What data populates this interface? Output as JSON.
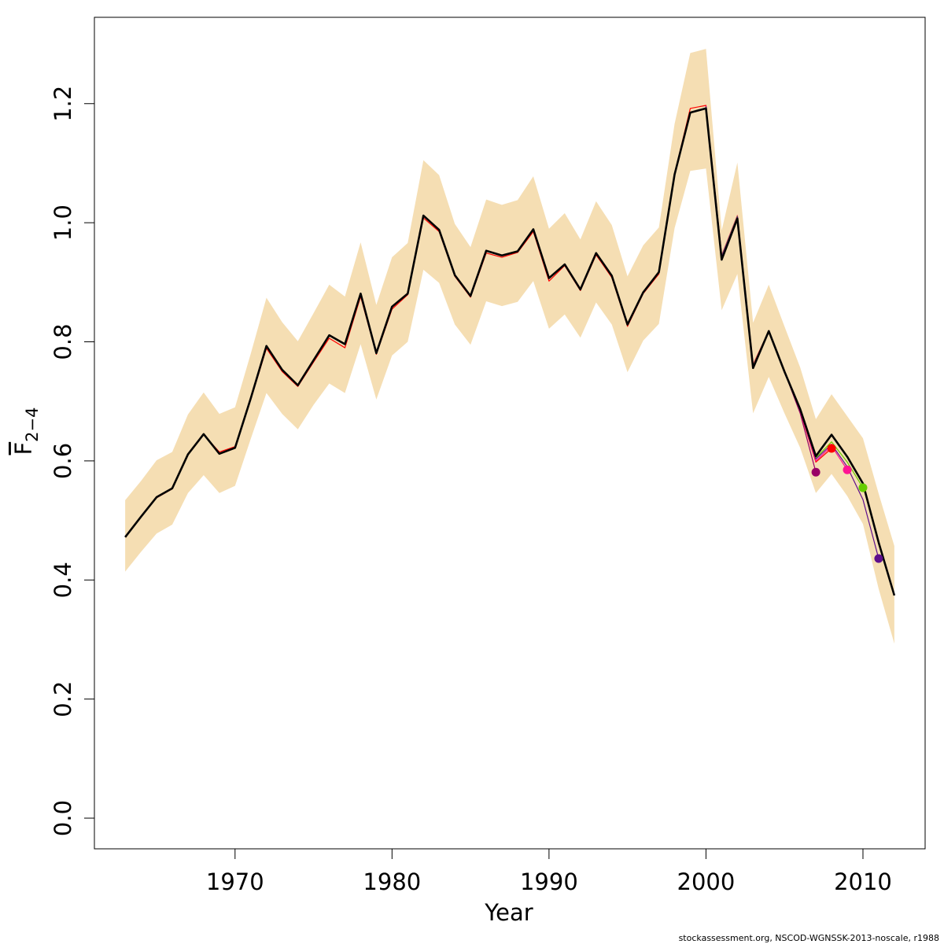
{
  "chart_data": {
    "type": "line",
    "xlabel": "Year",
    "ylabel": {
      "main": "F",
      "sub": "2−4"
    },
    "footnote": "stockassessment.org, NSCOD-WGNSSK-2013-noscale, r1988",
    "x": [
      1963,
      1964,
      1965,
      1966,
      1967,
      1968,
      1969,
      1970,
      1971,
      1972,
      1973,
      1974,
      1975,
      1976,
      1977,
      1978,
      1979,
      1980,
      1981,
      1982,
      1983,
      1984,
      1985,
      1986,
      1987,
      1988,
      1989,
      1990,
      1991,
      1992,
      1993,
      1994,
      1995,
      1996,
      1997,
      1998,
      1999,
      2000,
      2001,
      2002,
      2003,
      2004,
      2005,
      2006,
      2007,
      2008,
      2009,
      2010,
      2011,
      2012
    ],
    "band": {
      "color": "#F5DEB3",
      "upper": [
        0.534,
        0.566,
        0.601,
        0.615,
        0.678,
        0.715,
        0.679,
        0.69,
        0.78,
        0.874,
        0.833,
        0.801,
        0.848,
        0.896,
        0.876,
        0.967,
        0.862,
        0.942,
        0.966,
        1.105,
        1.08,
        0.998,
        0.959,
        1.039,
        1.03,
        1.038,
        1.078,
        0.99,
        1.016,
        0.972,
        1.036,
        0.996,
        0.91,
        0.962,
        0.992,
        1.166,
        1.285,
        1.292,
        0.987,
        1.101,
        0.832,
        0.896,
        0.826,
        0.757,
        0.67,
        0.712,
        0.675,
        0.638,
        0.545,
        0.457
      ],
      "lower": [
        0.414,
        0.447,
        0.478,
        0.493,
        0.546,
        0.576,
        0.546,
        0.558,
        0.637,
        0.714,
        0.679,
        0.653,
        0.694,
        0.73,
        0.714,
        0.796,
        0.703,
        0.777,
        0.8,
        0.921,
        0.899,
        0.829,
        0.795,
        0.868,
        0.86,
        0.867,
        0.902,
        0.822,
        0.846,
        0.807,
        0.866,
        0.829,
        0.749,
        0.802,
        0.83,
        0.991,
        1.087,
        1.091,
        0.853,
        0.914,
        0.68,
        0.741,
        0.68,
        0.622,
        0.546,
        0.578,
        0.541,
        0.494,
        0.385,
        0.293
      ]
    },
    "series": [
      {
        "color": "#FF0000",
        "width": 1.2,
        "values": [
          0.472,
          0.506,
          0.538,
          0.553,
          0.61,
          0.644,
          0.615,
          0.624,
          0.703,
          0.789,
          0.75,
          0.725,
          0.766,
          0.806,
          0.79,
          0.876,
          0.779,
          0.855,
          0.879,
          1.008,
          0.985,
          0.91,
          0.875,
          0.949,
          0.942,
          0.95,
          0.985,
          0.902,
          0.928,
          0.886,
          0.946,
          0.908,
          0.826,
          0.881,
          0.914,
          1.082,
          1.192,
          1.197,
          0.945,
          1.012,
          0.762,
          0.818,
          0.752,
          0.683,
          0.598,
          0.621,
          null,
          null,
          null,
          null
        ]
      },
      {
        "color": "#990066",
        "width": 1.2,
        "values": [
          null,
          null,
          null,
          null,
          null,
          null,
          null,
          null,
          null,
          null,
          null,
          null,
          null,
          null,
          null,
          null,
          null,
          null,
          null,
          null,
          null,
          null,
          null,
          null,
          null,
          null,
          null,
          null,
          null,
          null,
          null,
          null,
          null,
          null,
          null,
          null,
          null,
          1.196,
          0.944,
          1.011,
          0.76,
          0.817,
          0.75,
          0.68,
          0.581,
          null,
          null,
          null,
          null,
          null
        ]
      },
      {
        "color": "#FF1493",
        "width": 1.2,
        "values": [
          null,
          null,
          null,
          null,
          null,
          null,
          null,
          null,
          null,
          null,
          null,
          null,
          null,
          null,
          null,
          null,
          null,
          null,
          null,
          null,
          null,
          null,
          null,
          null,
          null,
          null,
          null,
          null,
          null,
          null,
          null,
          null,
          null,
          null,
          null,
          null,
          null,
          1.196,
          0.945,
          1.012,
          0.761,
          0.818,
          0.752,
          0.684,
          0.6,
          0.625,
          0.585,
          null,
          null,
          null
        ]
      },
      {
        "color": "#66CC00",
        "width": 1.2,
        "values": [
          null,
          null,
          null,
          null,
          null,
          null,
          null,
          null,
          null,
          null,
          null,
          null,
          null,
          null,
          null,
          null,
          null,
          null,
          null,
          null,
          null,
          null,
          null,
          null,
          null,
          null,
          null,
          null,
          null,
          null,
          null,
          null,
          null,
          null,
          null,
          null,
          null,
          1.195,
          0.944,
          1.011,
          0.76,
          0.818,
          0.752,
          0.686,
          0.605,
          0.632,
          0.598,
          0.555,
          null,
          null
        ]
      },
      {
        "color": "#5E0E8C",
        "width": 1.2,
        "values": [
          null,
          null,
          null,
          null,
          null,
          null,
          null,
          null,
          null,
          null,
          null,
          null,
          null,
          null,
          null,
          null,
          null,
          null,
          null,
          null,
          null,
          null,
          null,
          null,
          null,
          null,
          null,
          null,
          null,
          null,
          null,
          null,
          null,
          null,
          null,
          null,
          null,
          1.195,
          0.943,
          1.01,
          0.759,
          0.818,
          0.751,
          0.685,
          0.603,
          0.628,
          0.59,
          0.535,
          0.436,
          null
        ]
      },
      {
        "color": "#000000",
        "width": 2.6,
        "values": [
          0.472,
          0.506,
          0.539,
          0.554,
          0.611,
          0.645,
          0.612,
          0.622,
          0.705,
          0.793,
          0.753,
          0.727,
          0.769,
          0.811,
          0.796,
          0.881,
          0.781,
          0.859,
          0.881,
          1.012,
          0.988,
          0.912,
          0.877,
          0.953,
          0.945,
          0.952,
          0.989,
          0.907,
          0.93,
          0.888,
          0.949,
          0.911,
          0.829,
          0.883,
          0.917,
          1.081,
          1.185,
          1.192,
          0.938,
          1.007,
          0.756,
          0.818,
          0.75,
          0.687,
          0.608,
          0.644,
          0.607,
          0.562,
          0.463,
          0.374
        ],
        "endpoint_marker": false
      }
    ],
    "endpoint_markers": true,
    "xlim": [
      1961.04,
      2013.96
    ],
    "ylim": [
      -0.0515,
      1.345
    ],
    "xticks": [
      1970,
      1980,
      1990,
      2000,
      2010
    ],
    "yticks": [
      {
        "value": 0,
        "label": "0.0"
      },
      0.2,
      0.4,
      0.6,
      0.8,
      {
        "value": 1,
        "label": "1.0"
      },
      1.2
    ],
    "grid": false
  }
}
